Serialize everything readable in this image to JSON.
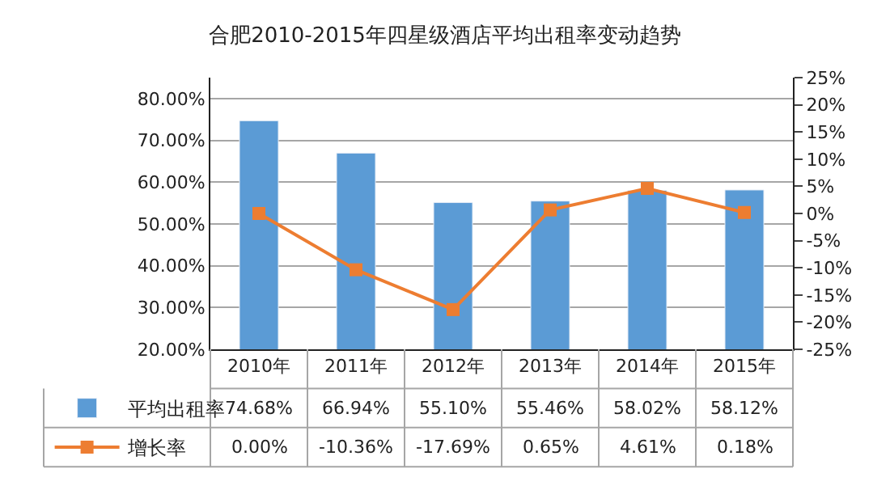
{
  "chart_data": {
    "type": "bar",
    "title": "合肥2010-2015年四星级酒店平均出租率变动趋势",
    "categories": [
      "2010年",
      "2011年",
      "2012年",
      "2013年",
      "2014年",
      "2015年"
    ],
    "series": [
      {
        "name": "平均出租率",
        "color": "#5b9bd5",
        "values": [
          74.68,
          66.94,
          55.1,
          55.46,
          58.02,
          58.12
        ],
        "value_labels": [
          "74.68%",
          "66.94%",
          "55.10%",
          "55.46%",
          "58.02%",
          "58.12%"
        ]
      },
      {
        "name": "增长率",
        "type": "line",
        "axis": "y2",
        "color": "#ed7d31",
        "marker": "square",
        "values": [
          0.0,
          -10.36,
          -17.69,
          0.65,
          4.61,
          0.18
        ],
        "value_labels": [
          "0.00%",
          "-10.36%",
          "-17.69%",
          "0.65%",
          "4.61%",
          "0.18%"
        ]
      }
    ],
    "ylim": [
      20,
      85
    ],
    "yticks": [
      {
        "value": 20,
        "label": "20.00%"
      },
      {
        "value": 30,
        "label": "30.00%"
      },
      {
        "value": 40,
        "label": "40.00%"
      },
      {
        "value": 50,
        "label": "50.00%"
      },
      {
        "value": 60,
        "label": "60.00%"
      },
      {
        "value": 70,
        "label": "70.00%"
      },
      {
        "value": 80,
        "label": "80.00%"
      }
    ],
    "y2lim": [
      -25,
      25
    ],
    "y2ticks": [
      {
        "value": -25,
        "label": "-25%"
      },
      {
        "value": -20,
        "label": "-20%"
      },
      {
        "value": -15,
        "label": "-15%"
      },
      {
        "value": -10,
        "label": "-10%"
      },
      {
        "value": -5,
        "label": "-5%"
      },
      {
        "value": 0,
        "label": "0%"
      },
      {
        "value": 5,
        "label": "5%"
      },
      {
        "value": 10,
        "label": "10%"
      },
      {
        "value": 15,
        "label": "15%"
      },
      {
        "value": 20,
        "label": "20%"
      },
      {
        "value": 25,
        "label": "25%"
      }
    ],
    "grid": "y",
    "legend": "bottom left"
  }
}
